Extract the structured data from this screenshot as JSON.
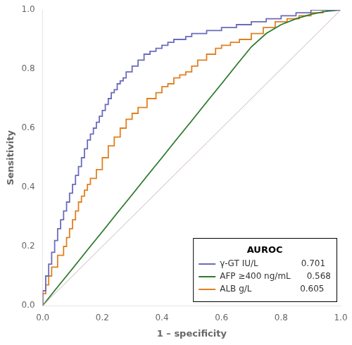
{
  "chart_data": {
    "type": "line",
    "xlabel": "1 – specificity",
    "ylabel": "Sensitivity",
    "xlim": [
      0.0,
      1.0
    ],
    "ylim": [
      0.0,
      1.0
    ],
    "xticks": [
      {
        "value": 0.0,
        "label": "0.0"
      },
      {
        "value": 0.2,
        "label": "0.2"
      },
      {
        "value": 0.4,
        "label": "0.4"
      },
      {
        "value": 0.6,
        "label": "0.6"
      },
      {
        "value": 0.8,
        "label": "0.8"
      },
      {
        "value": 1.0,
        "label": "1.0"
      }
    ],
    "yticks": [
      {
        "value": 0.0,
        "label": "0.0"
      },
      {
        "value": 0.2,
        "label": "0.2"
      },
      {
        "value": 0.4,
        "label": "0.4"
      },
      {
        "value": 0.6,
        "label": "0.6"
      },
      {
        "value": 0.8,
        "label": "0.8"
      },
      {
        "value": 1.0,
        "label": "1.0"
      }
    ],
    "grid": false,
    "legend": "lower right",
    "legend_title": "AUROC",
    "series": [
      {
        "color": "#c8b8b8",
        "type": "line",
        "x": [
          0,
          1
        ],
        "values": [
          0,
          1
        ]
      },
      {
        "name": "γ-GT IU/L                0.701",
        "color": "#6b6bbb",
        "type": "step",
        "x": [
          0.0,
          0.0,
          0.01,
          0.02,
          0.03,
          0.04,
          0.05,
          0.06,
          0.07,
          0.08,
          0.09,
          0.1,
          0.11,
          0.12,
          0.13,
          0.14,
          0.15,
          0.16,
          0.17,
          0.18,
          0.19,
          0.2,
          0.21,
          0.22,
          0.23,
          0.24,
          0.25,
          0.26,
          0.27,
          0.28,
          0.3,
          0.32,
          0.34,
          0.36,
          0.38,
          0.4,
          0.42,
          0.44,
          0.46,
          0.48,
          0.5,
          0.55,
          0.6,
          0.65,
          0.7,
          0.75,
          0.8,
          0.85,
          0.9,
          0.95,
          1.0
        ],
        "values": [
          0.0,
          0.05,
          0.1,
          0.14,
          0.18,
          0.22,
          0.26,
          0.29,
          0.32,
          0.35,
          0.38,
          0.41,
          0.44,
          0.47,
          0.5,
          0.53,
          0.56,
          0.58,
          0.6,
          0.62,
          0.64,
          0.66,
          0.68,
          0.7,
          0.72,
          0.73,
          0.75,
          0.76,
          0.77,
          0.79,
          0.81,
          0.83,
          0.85,
          0.86,
          0.87,
          0.88,
          0.89,
          0.9,
          0.9,
          0.91,
          0.92,
          0.93,
          0.94,
          0.95,
          0.96,
          0.97,
          0.98,
          0.99,
          1.0,
          1.0,
          1.0
        ]
      },
      {
        "name": "AFP ≥400 ng/mL      0.568",
        "color": "#2d7a2d",
        "type": "line",
        "x": [
          0.0,
          0.05,
          0.1,
          0.15,
          0.2,
          0.25,
          0.3,
          0.35,
          0.4,
          0.45,
          0.5,
          0.55,
          0.6,
          0.65,
          0.7,
          0.75,
          0.8,
          0.85,
          0.9,
          0.95,
          1.0
        ],
        "values": [
          0.0,
          0.063,
          0.125,
          0.188,
          0.25,
          0.313,
          0.375,
          0.438,
          0.5,
          0.563,
          0.625,
          0.688,
          0.75,
          0.813,
          0.875,
          0.92,
          0.95,
          0.97,
          0.985,
          0.995,
          1.0
        ]
      },
      {
        "name": "ALB g/L                  0.605",
        "color": "#e08020",
        "type": "step",
        "x": [
          0.0,
          0.0,
          0.01,
          0.02,
          0.03,
          0.05,
          0.07,
          0.08,
          0.09,
          0.1,
          0.11,
          0.12,
          0.13,
          0.14,
          0.15,
          0.16,
          0.18,
          0.2,
          0.22,
          0.24,
          0.26,
          0.28,
          0.3,
          0.32,
          0.35,
          0.38,
          0.4,
          0.42,
          0.44,
          0.46,
          0.48,
          0.5,
          0.52,
          0.55,
          0.58,
          0.6,
          0.63,
          0.66,
          0.7,
          0.74,
          0.78,
          0.82,
          0.86,
          0.9,
          0.94,
          0.97,
          1.0
        ],
        "values": [
          0.0,
          0.04,
          0.07,
          0.1,
          0.13,
          0.17,
          0.2,
          0.23,
          0.26,
          0.29,
          0.32,
          0.35,
          0.37,
          0.39,
          0.41,
          0.43,
          0.46,
          0.5,
          0.54,
          0.57,
          0.6,
          0.63,
          0.65,
          0.67,
          0.7,
          0.72,
          0.74,
          0.75,
          0.77,
          0.78,
          0.79,
          0.81,
          0.83,
          0.85,
          0.87,
          0.88,
          0.89,
          0.9,
          0.92,
          0.94,
          0.96,
          0.97,
          0.98,
          0.99,
          1.0,
          1.0,
          1.0
        ]
      }
    ]
  }
}
